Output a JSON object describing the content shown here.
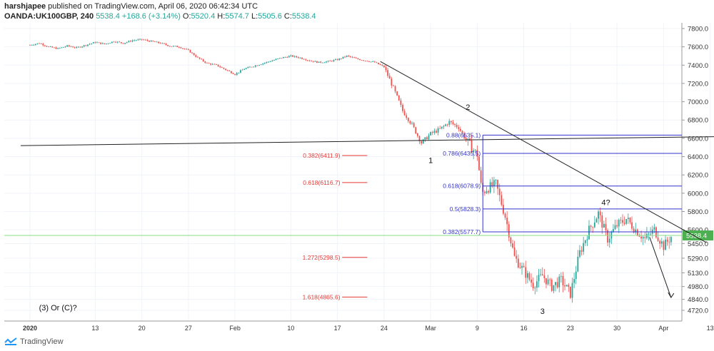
{
  "header": {
    "author": "harshjapee",
    "published_text": "published on TradingView.com, April 06, 2020 06:42:34 UTC",
    "symbol": "OANDA:UK100GBP, 240",
    "last": "5538.4",
    "change": "+168.6 (+3.14%)",
    "o_label": "O:",
    "o_value": "5520.4",
    "h_label": "H:",
    "h_value": "5574.7",
    "l_label": "L:",
    "l_value": "5505.6",
    "c_label": "C:",
    "c_value": "5538.4"
  },
  "footer": {
    "brand": "TradingView"
  },
  "colors": {
    "up": "#26a69a",
    "down": "#ef5350",
    "fib": "#3333cc",
    "fib_ext": "#e53935",
    "price_line": "#88dd88"
  },
  "chart_data": {
    "type": "candlestick",
    "ylim": [
      4620,
      7880
    ],
    "y_ticks": [
      4720,
      4840,
      4980,
      5130,
      5290,
      5450,
      5600,
      5800,
      6000,
      6200,
      6400,
      6600,
      6800,
      7000,
      7200,
      7400,
      7600,
      7800
    ],
    "x_ticks": [
      {
        "label": "2020",
        "bold": true,
        "x": 0
      },
      {
        "label": "13",
        "x": 7
      },
      {
        "label": "20",
        "x": 12
      },
      {
        "label": "27",
        "x": 17
      },
      {
        "label": "Feb",
        "x": 22
      },
      {
        "label": "10",
        "x": 28
      },
      {
        "label": "17",
        "x": 33
      },
      {
        "label": "24",
        "x": 38
      },
      {
        "label": "Mar",
        "x": 43
      },
      {
        "label": "9",
        "x": 48
      },
      {
        "label": "16",
        "x": 53
      },
      {
        "label": "23",
        "x": 58
      },
      {
        "label": "30",
        "x": 63
      },
      {
        "label": "Apr",
        "x": 68
      },
      {
        "label": "13",
        "x": 73
      }
    ],
    "close_path": [
      [
        0,
        7620
      ],
      [
        1,
        7640
      ],
      [
        2,
        7600
      ],
      [
        3,
        7580
      ],
      [
        4,
        7610
      ],
      [
        5,
        7590
      ],
      [
        6,
        7620
      ],
      [
        7,
        7650
      ],
      [
        8,
        7630
      ],
      [
        9,
        7660
      ],
      [
        10,
        7640
      ],
      [
        11,
        7670
      ],
      [
        12,
        7680
      ],
      [
        13,
        7660
      ],
      [
        14,
        7640
      ],
      [
        15,
        7610
      ],
      [
        16,
        7600
      ],
      [
        17,
        7560
      ],
      [
        18,
        7480
      ],
      [
        19,
        7420
      ],
      [
        20,
        7400
      ],
      [
        21,
        7350
      ],
      [
        22,
        7300
      ],
      [
        23,
        7360
      ],
      [
        24,
        7390
      ],
      [
        25,
        7420
      ],
      [
        26,
        7450
      ],
      [
        27,
        7480
      ],
      [
        28,
        7500
      ],
      [
        29,
        7480
      ],
      [
        30,
        7450
      ],
      [
        31,
        7430
      ],
      [
        32,
        7440
      ],
      [
        33,
        7460
      ],
      [
        34,
        7500
      ],
      [
        35,
        7470
      ],
      [
        36,
        7450
      ],
      [
        37,
        7430
      ],
      [
        38,
        7380
      ],
      [
        39,
        7150
      ],
      [
        40,
        6900
      ],
      [
        41,
        6750
      ],
      [
        42,
        6550
      ],
      [
        43,
        6650
      ],
      [
        44,
        6700
      ],
      [
        45,
        6780
      ],
      [
        46,
        6720
      ],
      [
        47,
        6550
      ],
      [
        48,
        6420
      ],
      [
        48.5,
        6000
      ],
      [
        49,
        6050
      ],
      [
        50,
        6100
      ],
      [
        51,
        5750
      ],
      [
        52,
        5300
      ],
      [
        53,
        5150
      ],
      [
        54,
        5000
      ],
      [
        55,
        5100
      ],
      [
        56,
        4980
      ],
      [
        57,
        5050
      ],
      [
        58,
        4900
      ],
      [
        59,
        5350
      ],
      [
        60,
        5600
      ],
      [
        61,
        5780
      ],
      [
        62,
        5500
      ],
      [
        63,
        5650
      ],
      [
        64,
        5720
      ],
      [
        65,
        5600
      ],
      [
        66,
        5500
      ],
      [
        67,
        5600
      ],
      [
        68,
        5420
      ],
      [
        69,
        5550
      ]
    ],
    "fib_retracement": [
      {
        "label": "0.88(6635.1)",
        "value": 6635.1
      },
      {
        "label": "0.786(6435.5)",
        "value": 6435.5
      },
      {
        "label": "0.618(6078.9)",
        "value": 6078.9
      },
      {
        "label": "0.5(5828.3)",
        "value": 5828.3
      },
      {
        "label": "0.382(5577.7)",
        "value": 5577.7
      }
    ],
    "fib_extension": [
      {
        "label": "0.382(6411.9)",
        "value": 6411.9
      },
      {
        "label": "0.618(6116.7)",
        "value": 6116.7
      },
      {
        "label": "1.272(5298.5)",
        "value": 5298.5
      },
      {
        "label": "1.618(4865.6)",
        "value": 4865.6
      }
    ],
    "wave_labels": [
      {
        "text": "1",
        "x": 43,
        "y": 6330
      },
      {
        "text": "2",
        "x": 47,
        "y": 6910
      },
      {
        "text": "3",
        "x": 55,
        "y": 4680
      },
      {
        "text": "4?",
        "x": 61.8,
        "y": 5870
      },
      {
        "text": "(3) Or (C)?",
        "x": 3,
        "y": 4720
      }
    ],
    "trendlines": [
      {
        "from": [
          -1,
          6520
        ],
        "to": [
          75,
          6620
        ]
      },
      {
        "from": [
          37.6,
          7440
        ],
        "to": [
          72.6,
          5460
        ]
      }
    ],
    "projection_arrow": {
      "from": [
        66.5,
        5520
      ],
      "to": [
        68.8,
        4860
      ]
    },
    "last_price": {
      "label": "5538.4",
      "value": 5538.4
    }
  }
}
